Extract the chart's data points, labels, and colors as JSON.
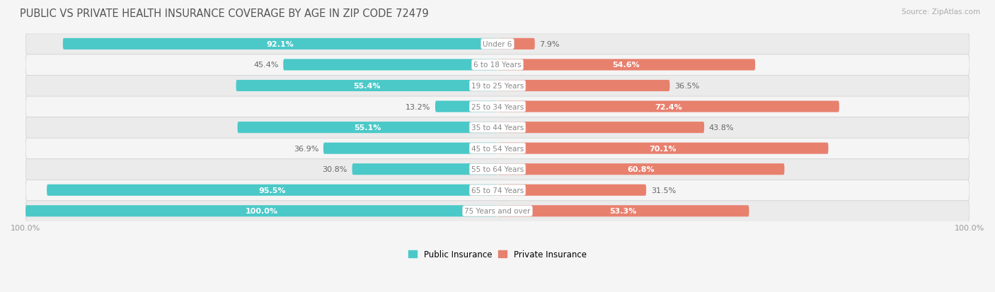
{
  "title": "PUBLIC VS PRIVATE HEALTH INSURANCE COVERAGE BY AGE IN ZIP CODE 72479",
  "source": "Source: ZipAtlas.com",
  "categories": [
    "Under 6",
    "6 to 18 Years",
    "19 to 25 Years",
    "25 to 34 Years",
    "35 to 44 Years",
    "45 to 54 Years",
    "55 to 64 Years",
    "65 to 74 Years",
    "75 Years and over"
  ],
  "public_values": [
    92.1,
    45.4,
    55.4,
    13.2,
    55.1,
    36.9,
    30.8,
    95.5,
    100.0
  ],
  "private_values": [
    7.9,
    54.6,
    36.5,
    72.4,
    43.8,
    70.1,
    60.8,
    31.5,
    53.3
  ],
  "public_color": "#4bc9c8",
  "private_color": "#e8806e",
  "row_bg_even": "#ebebeb",
  "row_bg_odd": "#f5f5f5",
  "title_color": "#555555",
  "source_color": "#aaaaaa",
  "max_value": 100.0,
  "figsize": [
    14.06,
    4.14
  ],
  "dpi": 100
}
